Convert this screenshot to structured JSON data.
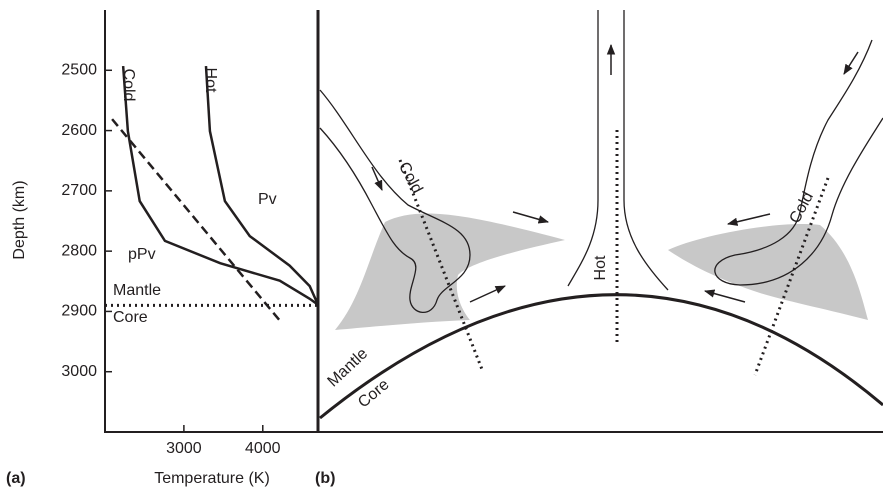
{
  "chart_data": {
    "type": "line",
    "panel_label": "(a)",
    "x_label": "Temperature (K)",
    "y_label": "Depth (km)",
    "xlim": [
      2000,
      4700
    ],
    "ylim": [
      2400,
      3100
    ],
    "y_inverted": true,
    "xticks": [
      3000,
      4000
    ],
    "yticks": [
      2500,
      2600,
      2700,
      2800,
      2900,
      3000
    ],
    "series": [
      {
        "name": "Cold",
        "color": "#231f20",
        "line_style": "solid",
        "x": [
          2230,
          2290,
          2440,
          2760,
          3460,
          4215,
          4595,
          4700
        ],
        "values": [
          2493,
          2601,
          2717,
          2783,
          2820,
          2849,
          2879,
          2889
        ]
      },
      {
        "name": "Hot",
        "color": "#231f20",
        "line_style": "solid",
        "x": [
          3280,
          3330,
          3520,
          3835,
          4340,
          4595,
          4700
        ],
        "values": [
          2493,
          2601,
          2717,
          2775,
          2824,
          2858,
          2889
        ]
      },
      {
        "color": "#231f20",
        "line_style": "dashed",
        "x": [
          2090,
          4240
        ],
        "values": [
          2581,
          2919
        ]
      },
      {
        "color": "#231f20",
        "line_style": "dotted",
        "x": [
          2000,
          4700
        ],
        "values": [
          2890,
          2890
        ]
      }
    ],
    "annotations": [
      "Pv",
      "pPv",
      "Mantle",
      "Core"
    ]
  },
  "diagram": {
    "panel_label": "(b)",
    "labels": [
      "Cold",
      "Hot",
      "Cold",
      "Mantle",
      "Core"
    ]
  }
}
